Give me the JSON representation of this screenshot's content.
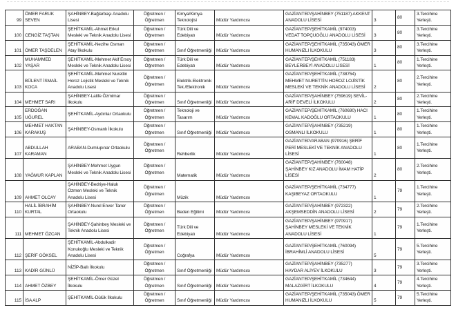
{
  "document": {
    "kind": "scanned-assignment-list",
    "repeated_title": "Öğretmen / Öğretmen",
    "repeated_role": "Müdür Yardımcısı"
  },
  "table": {
    "columns": [
      {
        "key": "no",
        "name": "row-number-cell"
      },
      {
        "key": "name",
        "name": "teacher-name-cell"
      },
      {
        "key": "current_school",
        "name": "current-school-cell"
      },
      {
        "key": "title",
        "name": "position-title-cell"
      },
      {
        "key": "branch",
        "name": "subject-branch-cell"
      },
      {
        "key": "assigned_role",
        "name": "assigned-role-cell"
      },
      {
        "key": "new_school",
        "name": "placement-school-cell"
      },
      {
        "key": "preference_no",
        "name": "preference-number-cell"
      },
      {
        "key": "score",
        "name": "score-cell"
      },
      {
        "key": "placement_note",
        "name": "placement-note-cell"
      }
    ],
    "rows": [
      {
        "no": "99",
        "name": "ÖMER FARUK SEVEN",
        "current_school": "ŞAHİNBEY-Bağlarbaşı Anadolu Lisesi",
        "title": "Öğretmen / Öğretmen",
        "branch": "Kimya/Kimya Teknolojisi",
        "assigned_role": "Müdür Yardımcısı",
        "new_school": "GAZİANTEP/ŞAHİNBEY (751187) AKKENT ANADOLU LİSESİ",
        "preference_no": "3",
        "score": "80",
        "placement_note": "3.Tercihine Yerleşti."
      },
      {
        "no": "100",
        "name": "CENGİZ TAŞTAN",
        "current_school": "ŞEHİTKAMİL-Ahmet Erkul Mesleki ve Teknik Anadolu Lisesi",
        "title": "Öğretmen / Öğretmen",
        "branch": "Türk Dili ve Edebiyatı",
        "assigned_role": "Müdür Yardımcısı",
        "new_school": "GAZİANTEP/ŞEHİTKAMİL (974003) VEDAT TOPÇUOĞLU ANADOLU LİSESİ",
        "preference_no": "3",
        "score": "80",
        "placement_note": "3.Tercihine Yerleşti."
      },
      {
        "no": "101",
        "name": "ÖMER TAŞDELEN",
        "current_school": "ŞEHİTKAMİL-Nezihe Osman Atay İlkokulu",
        "title": "Öğretmen / Öğretmen",
        "branch": "Sınıf Öğretmenliği",
        "assigned_role": "Müdür Yardımcısı",
        "new_school": "GAZİANTEP/ŞEHİTKAMİL (735043) ÖMER HUMANIZLI İLKOKULU",
        "preference_no": "3",
        "score": "80",
        "placement_note": "3.Tercihine Yerleşti."
      },
      {
        "no": "102",
        "name": "MUHAMMED YAŞAR",
        "current_school": "ŞEHİTKAMİL-Mehmet Akif Ersoy Mesleki ve Teknik Anadolu Lisesi",
        "title": "Öğretmen / Öğretmen",
        "branch": "Türk Dili ve Edebiyatı",
        "assigned_role": "Müdür Yardımcısı",
        "new_school": "GAZİANTEP/ŞEHİTKAMİL (751183) BEYLERBEYİ ANADOLU LİSESİ",
        "preference_no": "1",
        "score": "80",
        "placement_note": "1.Tercihine Yerleşti."
      },
      {
        "no": "103",
        "name": "BÜLENT İSMAİL KOCA",
        "current_school": "ŞEHİTKAMİL-Mehmet Nurettin Horoz Lojistik Mesleki ve Teknik Anadolu Lisesi",
        "title": "Öğretmen / Öğretmen",
        "branch": "Elektrik-Elektronik Tek./Elektronik",
        "assigned_role": "Müdür Yardımcısı",
        "new_school": "GAZİANTEP/ŞEHİTKAMİL (738754) MEHMET NURETTİN HOROZ LOJİSTİK MESLEKİ VE TEKNİK ANADOLU LİSESİ",
        "preference_no": "2",
        "score": "80",
        "placement_note": "2.Tercihine Yerleşti."
      },
      {
        "no": "104",
        "name": "MEHMET SARI",
        "current_school": "ŞAHİNBEY-Latife Özmimar İlkokulu",
        "title": "Öğretmen / Öğretmen",
        "branch": "Sınıf Öğretmenliği",
        "assigned_role": "Müdür Yardımcısı",
        "new_school": "GAZİANTEP/ŞAHİNBEY (759619) SEVİL-ARİF DEVELİ İLKOKULU",
        "preference_no": "2",
        "score": "80",
        "placement_note": "2.Tercihine Yerleşti."
      },
      {
        "no": "105",
        "name": "ERDOĞAN UĞUREL",
        "current_school": "ŞEHİTKAMİL-Aydınlar Ortaokulu",
        "title": "Öğretmen / Öğretmen",
        "branch": "Teknoloji ve Tasarım",
        "assigned_role": "Müdür Yardımcısı",
        "new_school": "GAZİANTEP/ŞEHİTKAMİL (760690) HACI KEMAL KADOĞLU ORTAOKULU",
        "preference_no": "1",
        "score": "80",
        "placement_note": "1.Tercihine Yerleşti."
      },
      {
        "no": "106",
        "name": "MEHMET HAKTAN KARAKUŞ",
        "current_school": "ŞAHİNBEY-Osmanlı İlkokulu",
        "title": "Öğretmen / Öğretmen",
        "branch": "Sınıf Öğretmenliği",
        "assigned_role": "Müdür Yardımcısı",
        "new_school": "GAZİANTEP/ŞAHİNBEY (735219) OSMANLI İLKOKULU",
        "preference_no": "1",
        "score": "80",
        "placement_note": "1.Tercihine Yerleşti."
      },
      {
        "no": "107",
        "name": "ABDULLAH KARAMAN",
        "current_school": "ARABAN-Dumlupınar Ortaokulu",
        "title": "Öğretmen / Öğretmen",
        "branch": "Rehberlik",
        "assigned_role": "Müdür Yardımcısı",
        "new_school": "GAZİANTEP/ARABAN (970916) ŞERİF PERİ MESLEKİ VE TEKNİK ANADOLU LİSESİ",
        "preference_no": "1",
        "score": "80",
        "placement_note": "1.Tercihine Yerleşti."
      },
      {
        "no": "108",
        "name": "YAĞMUR KAPLAN",
        "current_school": "ŞAHİNBEY-Mehmet Uygun Mesleki ve Teknik Anadolu Lisesi",
        "title": "Öğretmen / Öğretmen",
        "branch": "Matematik",
        "assigned_role": "Müdür Yardımcısı",
        "new_school": "GAZİANTEP/ŞAHİNBEY (760048) ŞAHİNBEY KIZ ANADOLU İMAM HATİP LİSESİ",
        "preference_no": "2",
        "score": "80",
        "placement_note": "2.Tercihine Yerleşti."
      },
      {
        "no": "109",
        "name": "AHMET OLCAY",
        "current_school": "ŞAHİNBEY-Bedriye-Haluk Özmen Mesleki ve Teknik Anadolu Lisesi",
        "title": "Öğretmen / Öğretmen",
        "branch": "Müzik",
        "assigned_role": "Müdür Yardımcısı",
        "new_school": "GAZİANTEP/ŞEHİTKAMİL (734777) KAŞIBEYAZ ORTAOKULU",
        "preference_no": "1",
        "score": "79",
        "placement_note": "1.Tercihine Yerleşti."
      },
      {
        "no": "110",
        "name": "HALİL İBRAHİM KURTAL",
        "current_school": "ŞAHİNBEY-Nurel Enver Taner Ortaokulu",
        "title": "Öğretmen / Öğretmen",
        "branch": "Beden Eğitimi",
        "assigned_role": "Müdür Yardımcısı",
        "new_school": "GAZİANTEP/ŞAHİNBEY (972322) AKŞEMSEDDİN ANADOLU LİSESİ",
        "preference_no": "2",
        "score": "79",
        "placement_note": "2.Tercihine Yerleşti."
      },
      {
        "no": "111",
        "name": "MEHMET ÖZCAN",
        "current_school": "ŞAHİNBEY-Şahinbey Mesleki ve Teknik Anadolu Lisesi",
        "title": "Öğretmen / Öğretmen",
        "branch": "Türk Dili ve Edebiyatı",
        "assigned_role": "Müdür Yardımcısı",
        "new_school": "GAZİANTEP/ŞAHİNBEY (970917) ŞAHİNBEY MESLEKİ VE TEKNİK ANADOLU LİSESİ",
        "preference_no": "1",
        "score": "79",
        "placement_note": "1.Tercihine Yerleşti."
      },
      {
        "no": "112",
        "name": "ŞERİF GÖKSEL",
        "current_school": "ŞEHİTKAMİL-Abdulkadir Konukoğlu Mesleki ve Teknik Anadolu Lisesi",
        "title": "Öğretmen / Öğretmen",
        "branch": "Coğrafya",
        "assigned_role": "Müdür Yardımcısı",
        "new_school": "GAZİANTEP/ŞEHİTKAMİL (760094) İBRAHİMLİ ANADOLU LİSESİ",
        "preference_no": "5",
        "score": "79",
        "placement_note": "5.Tercihine Yerleşti."
      },
      {
        "no": "113",
        "name": "KADİR GÜNLÜ",
        "current_school": "NİZİP-Ballı İlkokulu",
        "title": "Öğretmen / Öğretmen",
        "branch": "Sınıf Öğretmenliği",
        "assigned_role": "Müdür Yardımcısı",
        "new_school": "GAZİANTEP/ŞAHİNBEY (735277) HAYDAR ALİYEV İLKOKULU",
        "preference_no": "3",
        "score": "79",
        "placement_note": "3.Tercihine Yerleşti."
      },
      {
        "no": "114",
        "name": "AHMET ÖZBEY",
        "current_school": "ŞEHİTKAMİL-Ömer Güzel İlkokulu",
        "title": "Öğretmen / Öğretmen",
        "branch": "Sınıf Öğretmenliği",
        "assigned_role": "Müdür Yardımcısı",
        "new_school": "GAZİANTEP/ŞEHİTKAMİL (734644) MALAZGİRT İLKOKULU",
        "preference_no": "4",
        "score": "79",
        "placement_note": "4.Tercihine Yerleşti."
      },
      {
        "no": "115",
        "name": "İSA ALP",
        "current_school": "ŞEHİTKAMİL-Dülük İlkokulu",
        "title": "Öğretmen / Öğretmen",
        "branch": "Sınıf Öğretmenliği",
        "assigned_role": "Müdür Yardımcısı",
        "new_school": "GAZİANTEP/ŞEHİTKAMİL (735043) ÖMER HUMANIZLI İLKOKULU",
        "preference_no": "5",
        "score": "79",
        "placement_note": "5.Tercihine Yerleşti."
      }
    ]
  }
}
